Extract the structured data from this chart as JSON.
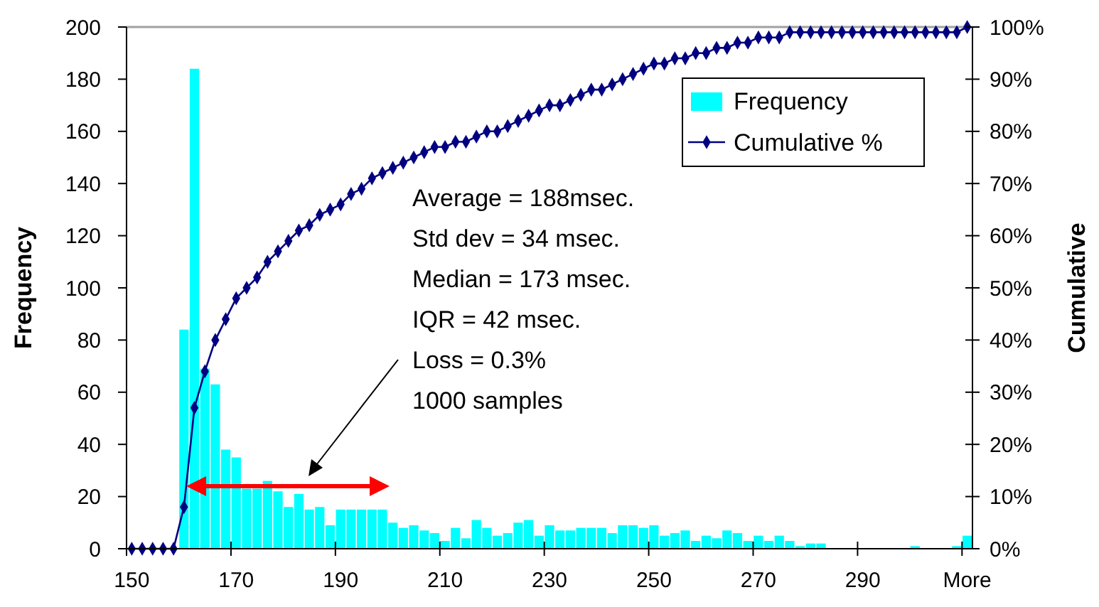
{
  "chart_data": {
    "type": "bar",
    "ylabel": "Frequency",
    "y2label": "Cumulative",
    "categories": [
      "150",
      null,
      null,
      null,
      null,
      null,
      null,
      null,
      null,
      null,
      "170",
      null,
      null,
      null,
      null,
      null,
      null,
      null,
      null,
      null,
      "190",
      null,
      null,
      null,
      null,
      null,
      null,
      null,
      null,
      null,
      "210",
      null,
      null,
      null,
      null,
      null,
      null,
      null,
      null,
      null,
      "230",
      null,
      null,
      null,
      null,
      null,
      null,
      null,
      null,
      null,
      "250",
      null,
      null,
      null,
      null,
      null,
      null,
      null,
      null,
      null,
      "270",
      null,
      null,
      null,
      null,
      null,
      null,
      null,
      null,
      null,
      "290",
      null,
      null,
      null,
      null,
      null,
      null,
      null,
      null,
      null,
      "More"
    ],
    "series": [
      {
        "name": "Frequency",
        "color": "#00ffff",
        "values": [
          0,
          0,
          0,
          0,
          0,
          84,
          184,
          69,
          63,
          38,
          35,
          23,
          23,
          26,
          22,
          16,
          21,
          15,
          16,
          9,
          15,
          15,
          15,
          15,
          15,
          10,
          8,
          9,
          7,
          6,
          3,
          8,
          4,
          11,
          8,
          5,
          6,
          10,
          11,
          5,
          9,
          7,
          7,
          8,
          8,
          8,
          6,
          9,
          9,
          8,
          9,
          5,
          6,
          7,
          3,
          5,
          4,
          7,
          6,
          3,
          5,
          3,
          5,
          3,
          1,
          2,
          2,
          0,
          0,
          0,
          0,
          0,
          0,
          0,
          0,
          1,
          0,
          0,
          0,
          1,
          5
        ]
      },
      {
        "name": "Cumulative %",
        "type": "line",
        "axis": "y2",
        "color": "#000080",
        "values": [
          0,
          0,
          0,
          0,
          0,
          8,
          27,
          34,
          40,
          44,
          48,
          50,
          52,
          55,
          57,
          59,
          61,
          62,
          64,
          65,
          66,
          68,
          69,
          71,
          72,
          73,
          74,
          75,
          76,
          77,
          77,
          78,
          78,
          79,
          80,
          80,
          81,
          82,
          83,
          84,
          85,
          85,
          86,
          87,
          88,
          88,
          89,
          90,
          91,
          92,
          93,
          93,
          94,
          94,
          95,
          95,
          96,
          96,
          97,
          97,
          98,
          98,
          98,
          99,
          99,
          99,
          99,
          99,
          99,
          99,
          99,
          99,
          99,
          99,
          99,
          99,
          99,
          99,
          99,
          99,
          100
        ]
      }
    ],
    "ylim": [
      0,
      200
    ],
    "yticks": [
      0,
      20,
      40,
      60,
      80,
      100,
      120,
      140,
      160,
      180,
      200
    ],
    "y2lim": [
      0,
      100
    ],
    "y2ticks": [
      {
        "value": 0,
        "label": "0%"
      },
      {
        "value": 10,
        "label": "10%"
      },
      {
        "value": 20,
        "label": "20%"
      },
      {
        "value": 30,
        "label": "30%"
      },
      {
        "value": 40,
        "label": "40%"
      },
      {
        "value": 50,
        "label": "50%"
      },
      {
        "value": 60,
        "label": "60%"
      },
      {
        "value": 70,
        "label": "70%"
      },
      {
        "value": 80,
        "label": "80%"
      },
      {
        "value": 90,
        "label": "90%"
      },
      {
        "value": 100,
        "label": "100%"
      }
    ],
    "marker": "diamond",
    "legend": "top right",
    "grid": false,
    "annotations": [
      "Average = 188msec.",
      "Std dev = 34 msec.",
      "Median = 173 msec.",
      "IQR = 42 msec.",
      "Loss = 0.3%",
      "1000 samples"
    ]
  }
}
